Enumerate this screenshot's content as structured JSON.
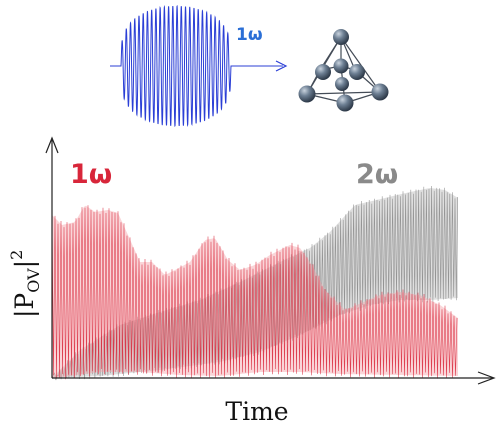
{
  "figure": {
    "pulse_label": "1ω",
    "y_axis_label_base": "|P",
    "y_axis_label_sub": "OV",
    "y_axis_label_end": "|",
    "y_axis_label_sup": "2",
    "x_axis_label": "Time",
    "series": [
      {
        "label": "1ω",
        "color": "#d8263a"
      },
      {
        "label": "2ω",
        "color": "#8c8c8c"
      }
    ],
    "pulse_color": "#2b3fd6",
    "atom_color": "#556677"
  }
}
